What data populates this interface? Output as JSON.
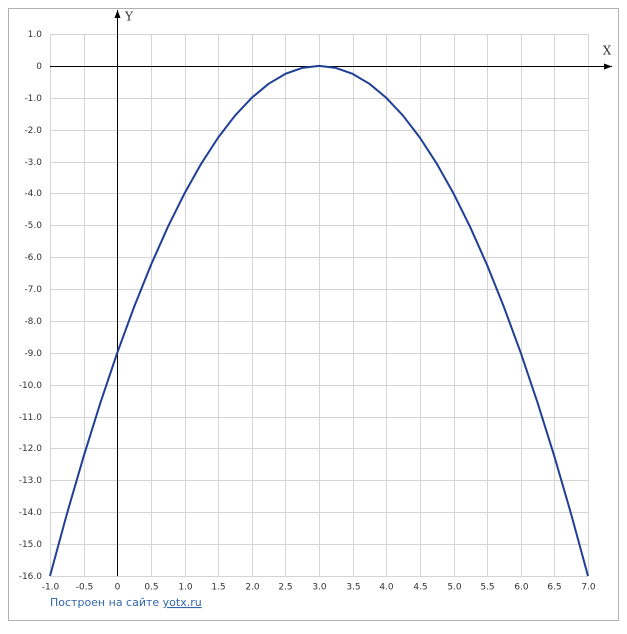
{
  "chart_data": {
    "type": "line",
    "x_label": "X",
    "y_label": "Y",
    "x": [
      -1,
      -0.75,
      -0.5,
      -0.25,
      0,
      0.25,
      0.5,
      0.75,
      1,
      1.25,
      1.5,
      1.75,
      2,
      2.25,
      2.5,
      2.75,
      3,
      3.25,
      3.5,
      3.75,
      4,
      4.25,
      4.5,
      4.75,
      5,
      5.25,
      5.5,
      5.75,
      6,
      6.25,
      6.5,
      6.75,
      7
    ],
    "series": [
      {
        "color": "#1e3f94",
        "values": [
          -16,
          -14.0625,
          -12.25,
          -10.5625,
          -9,
          -7.5625,
          -6.25,
          -5.0625,
          -4,
          -3.0625,
          -2.25,
          -1.5625,
          -1,
          -0.5625,
          -0.25,
          -0.0625,
          0,
          -0.0625,
          -0.25,
          -0.5625,
          -1,
          -1.5625,
          -2.25,
          -3.0625,
          -4,
          -5.0625,
          -6.25,
          -7.5625,
          -9,
          -10.5625,
          -12.25,
          -14.0625,
          -16
        ]
      }
    ],
    "xlim": [
      -1,
      7
    ],
    "ylim": [
      -16,
      1
    ],
    "xticks": [
      {
        "value": -1,
        "label": "-1.0"
      },
      -0.5,
      0,
      0.5,
      {
        "value": 1,
        "label": "1.0"
      },
      1.5,
      {
        "value": 2,
        "label": "2.0"
      },
      2.5,
      {
        "value": 3,
        "label": "3.0"
      },
      3.5,
      {
        "value": 4,
        "label": "4.0"
      },
      4.5,
      {
        "value": 5,
        "label": "5.0"
      },
      5.5,
      {
        "value": 6,
        "label": "6.0"
      },
      6.5,
      {
        "value": 7,
        "label": "7.0"
      }
    ],
    "yticks": [
      {
        "value": 1,
        "label": "1.0"
      },
      0,
      {
        "value": -1,
        "label": "-1.0"
      },
      {
        "value": -2,
        "label": "-2.0"
      },
      {
        "value": -3,
        "label": "-3.0"
      },
      {
        "value": -4,
        "label": "-4.0"
      },
      {
        "value": -5,
        "label": "-5.0"
      },
      {
        "value": -6,
        "label": "-6.0"
      },
      {
        "value": -7,
        "label": "-7.0"
      },
      {
        "value": -8,
        "label": "-8.0"
      },
      {
        "value": -9,
        "label": "-9.0"
      },
      {
        "value": -10,
        "label": "-10.0"
      },
      {
        "value": -11,
        "label": "-11.0"
      },
      {
        "value": -12,
        "label": "-12.0"
      },
      {
        "value": -13,
        "label": "-13.0"
      },
      {
        "value": -14,
        "label": "-14.0"
      },
      {
        "value": -15,
        "label": "-15.0"
      },
      {
        "value": -16,
        "label": "-16.0"
      }
    ],
    "grid": true,
    "credit": {
      "text": "Построен на сайте",
      "link": "yotx.ru"
    }
  }
}
